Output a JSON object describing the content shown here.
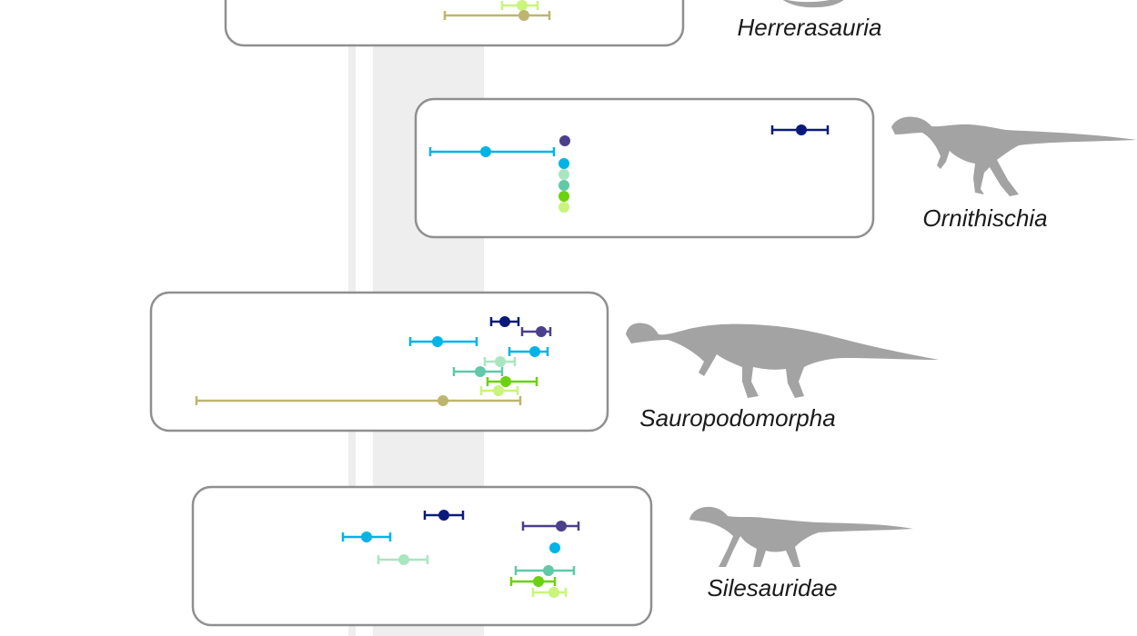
{
  "chart_data": {
    "type": "scatter",
    "description_of_marks": "point estimates with horizontal uncertainty intervals, one boxed panel per clade",
    "colors": [
      "#0b1a7a",
      "#4b3f8c",
      "#00b4e6",
      "#a9e6c0",
      "#5fc9a8",
      "#6cd10e",
      "#c8f57a",
      "#bdb56e"
    ],
    "grid": false,
    "panels": [
      {
        "clade": "Herrerasauria",
        "points": [
          {
            "x": 574,
            "lo": 552,
            "hi": 591,
            "color": "#c8f57a"
          },
          {
            "x": 576,
            "lo": 489,
            "hi": 604,
            "color": "#bdb56e"
          }
        ]
      },
      {
        "clade": "Ornithischia",
        "points": [
          {
            "x": 881,
            "lo": 849,
            "hi": 910,
            "color": "#0b1a7a"
          },
          {
            "x": 621,
            "lo": null,
            "hi": null,
            "color": "#4b3f8c"
          },
          {
            "x": 534,
            "lo": 473,
            "hi": 609,
            "color": "#00b4e6"
          },
          {
            "x": 620,
            "lo": null,
            "hi": null,
            "color": "#00b4e6"
          },
          {
            "x": 620,
            "lo": null,
            "hi": null,
            "color": "#a9e6c0"
          },
          {
            "x": 620,
            "lo": null,
            "hi": null,
            "color": "#5fc9a8"
          },
          {
            "x": 620,
            "lo": null,
            "hi": null,
            "color": "#6cd10e"
          },
          {
            "x": 620,
            "lo": null,
            "hi": null,
            "color": "#c8f57a"
          }
        ]
      },
      {
        "clade": "Sauropodomorpha",
        "points": [
          {
            "x": 555,
            "lo": 540,
            "hi": 570,
            "color": "#0b1a7a"
          },
          {
            "x": 595,
            "lo": 574,
            "hi": 605,
            "color": "#4b3f8c"
          },
          {
            "x": 481,
            "lo": 451,
            "hi": 524,
            "color": "#00b4e6"
          },
          {
            "x": 588,
            "lo": 560,
            "hi": 602,
            "color": "#00b4e6"
          },
          {
            "x": 550,
            "lo": 533,
            "hi": 566,
            "color": "#a9e6c0"
          },
          {
            "x": 528,
            "lo": 499,
            "hi": 552,
            "color": "#5fc9a8"
          },
          {
            "x": 556,
            "lo": 536,
            "hi": 590,
            "color": "#6cd10e"
          },
          {
            "x": 548,
            "lo": 529,
            "hi": 569,
            "color": "#c8f57a"
          },
          {
            "x": 487,
            "lo": 216,
            "hi": 572,
            "color": "#bdb56e"
          }
        ]
      },
      {
        "clade": "Silesauridae",
        "points": [
          {
            "x": 488,
            "lo": 467,
            "hi": 509,
            "color": "#0b1a7a"
          },
          {
            "x": 617,
            "lo": 575,
            "hi": 636,
            "color": "#4b3f8c"
          },
          {
            "x": 403,
            "lo": 377,
            "hi": 429,
            "color": "#00b4e6"
          },
          {
            "x": 610,
            "lo": null,
            "hi": null,
            "color": "#00b4e6"
          },
          {
            "x": 444,
            "lo": 416,
            "hi": 470,
            "color": "#a9e6c0"
          },
          {
            "x": 603,
            "lo": 567,
            "hi": 631,
            "color": "#5fc9a8"
          },
          {
            "x": 592,
            "lo": 562,
            "hi": 610,
            "color": "#6cd10e"
          },
          {
            "x": 609,
            "lo": 586,
            "hi": 622,
            "color": "#c8f57a"
          }
        ]
      }
    ]
  }
}
